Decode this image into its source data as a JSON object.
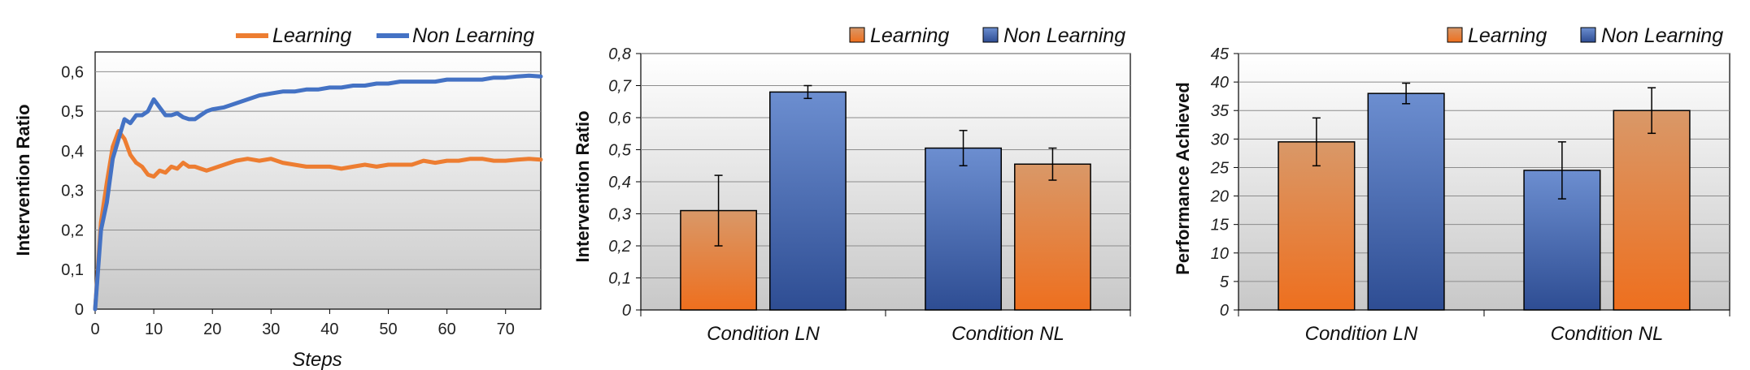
{
  "colors": {
    "learning": "#ed7d31",
    "non_learning": "#4472c4"
  },
  "chart_data": [
    {
      "type": "line",
      "xlabel": "Steps",
      "ylabel": "Intervention Ratio",
      "xlim": [
        0,
        76
      ],
      "ylim": [
        0,
        0.65
      ],
      "xticks": [
        "0",
        "10",
        "20",
        "30",
        "40",
        "50",
        "60",
        "70"
      ],
      "yticks": [
        "0",
        "0,1",
        "0,2",
        "0,3",
        "0,4",
        "0,5",
        "0,6"
      ],
      "legend": "top-right",
      "grid": true,
      "series": [
        {
          "name": "Learning",
          "x": [
            0,
            1,
            2,
            3,
            4,
            5,
            6,
            7,
            8,
            9,
            10,
            11,
            12,
            13,
            14,
            15,
            16,
            17,
            18,
            19,
            20,
            22,
            24,
            26,
            28,
            30,
            32,
            34,
            36,
            38,
            40,
            42,
            44,
            46,
            48,
            50,
            52,
            54,
            56,
            58,
            60,
            62,
            64,
            66,
            68,
            70,
            72,
            74,
            76
          ],
          "y": [
            0,
            0.22,
            0.32,
            0.41,
            0.45,
            0.43,
            0.39,
            0.37,
            0.36,
            0.34,
            0.335,
            0.35,
            0.345,
            0.36,
            0.355,
            0.37,
            0.36,
            0.36,
            0.355,
            0.35,
            0.355,
            0.365,
            0.375,
            0.38,
            0.375,
            0.38,
            0.37,
            0.365,
            0.36,
            0.36,
            0.36,
            0.355,
            0.36,
            0.365,
            0.36,
            0.365,
            0.365,
            0.365,
            0.375,
            0.37,
            0.375,
            0.375,
            0.38,
            0.38,
            0.375,
            0.375,
            0.378,
            0.38,
            0.378
          ]
        },
        {
          "name": "Non Learning",
          "x": [
            0,
            1,
            2,
            3,
            4,
            5,
            6,
            7,
            8,
            9,
            10,
            11,
            12,
            13,
            14,
            15,
            16,
            17,
            18,
            19,
            20,
            22,
            24,
            26,
            28,
            30,
            32,
            34,
            36,
            38,
            40,
            42,
            44,
            46,
            48,
            50,
            52,
            54,
            56,
            58,
            60,
            62,
            64,
            66,
            68,
            70,
            72,
            74,
            76
          ],
          "y": [
            0,
            0.2,
            0.27,
            0.38,
            0.43,
            0.48,
            0.47,
            0.49,
            0.49,
            0.5,
            0.53,
            0.51,
            0.49,
            0.49,
            0.495,
            0.485,
            0.48,
            0.48,
            0.49,
            0.5,
            0.505,
            0.51,
            0.52,
            0.53,
            0.54,
            0.545,
            0.55,
            0.55,
            0.555,
            0.555,
            0.56,
            0.56,
            0.565,
            0.565,
            0.57,
            0.57,
            0.575,
            0.575,
            0.575,
            0.575,
            0.58,
            0.58,
            0.58,
            0.58,
            0.585,
            0.585,
            0.588,
            0.59,
            0.588
          ]
        }
      ]
    },
    {
      "type": "bar",
      "ylabel": "Intervention Ratio",
      "ylim": [
        0,
        0.8
      ],
      "yticks": [
        "0",
        "0,1",
        "0,2",
        "0,3",
        "0,4",
        "0,5",
        "0,6",
        "0,7",
        "0,8"
      ],
      "categories": [
        "Condition LN",
        "Condition NL"
      ],
      "legend": "top-right",
      "grid": true,
      "series": [
        {
          "name": "Learning",
          "values": [
            0.31,
            0.455
          ],
          "errors": [
            0.11,
            0.05
          ]
        },
        {
          "name": "Non Learning",
          "values": [
            0.68,
            0.505
          ],
          "errors": [
            0.02,
            0.055
          ]
        }
      ],
      "bar_order": [
        [
          "Learning",
          "Non Learning"
        ],
        [
          "Non Learning",
          "Learning"
        ]
      ]
    },
    {
      "type": "bar",
      "ylabel": "Performance Achieved",
      "ylim": [
        0,
        45
      ],
      "yticks": [
        "0",
        "5",
        "10",
        "15",
        "20",
        "25",
        "30",
        "35",
        "40",
        "45"
      ],
      "categories": [
        "Condition LN",
        "Condition NL"
      ],
      "legend": "top-right",
      "grid": true,
      "series": [
        {
          "name": "Learning",
          "values": [
            29.5,
            35
          ],
          "errors": [
            4.2,
            4
          ]
        },
        {
          "name": "Non Learning",
          "values": [
            38,
            24.5
          ],
          "errors": [
            1.8,
            5
          ]
        }
      ],
      "bar_order": [
        [
          "Learning",
          "Non Learning"
        ],
        [
          "Non Learning",
          "Learning"
        ]
      ]
    }
  ]
}
